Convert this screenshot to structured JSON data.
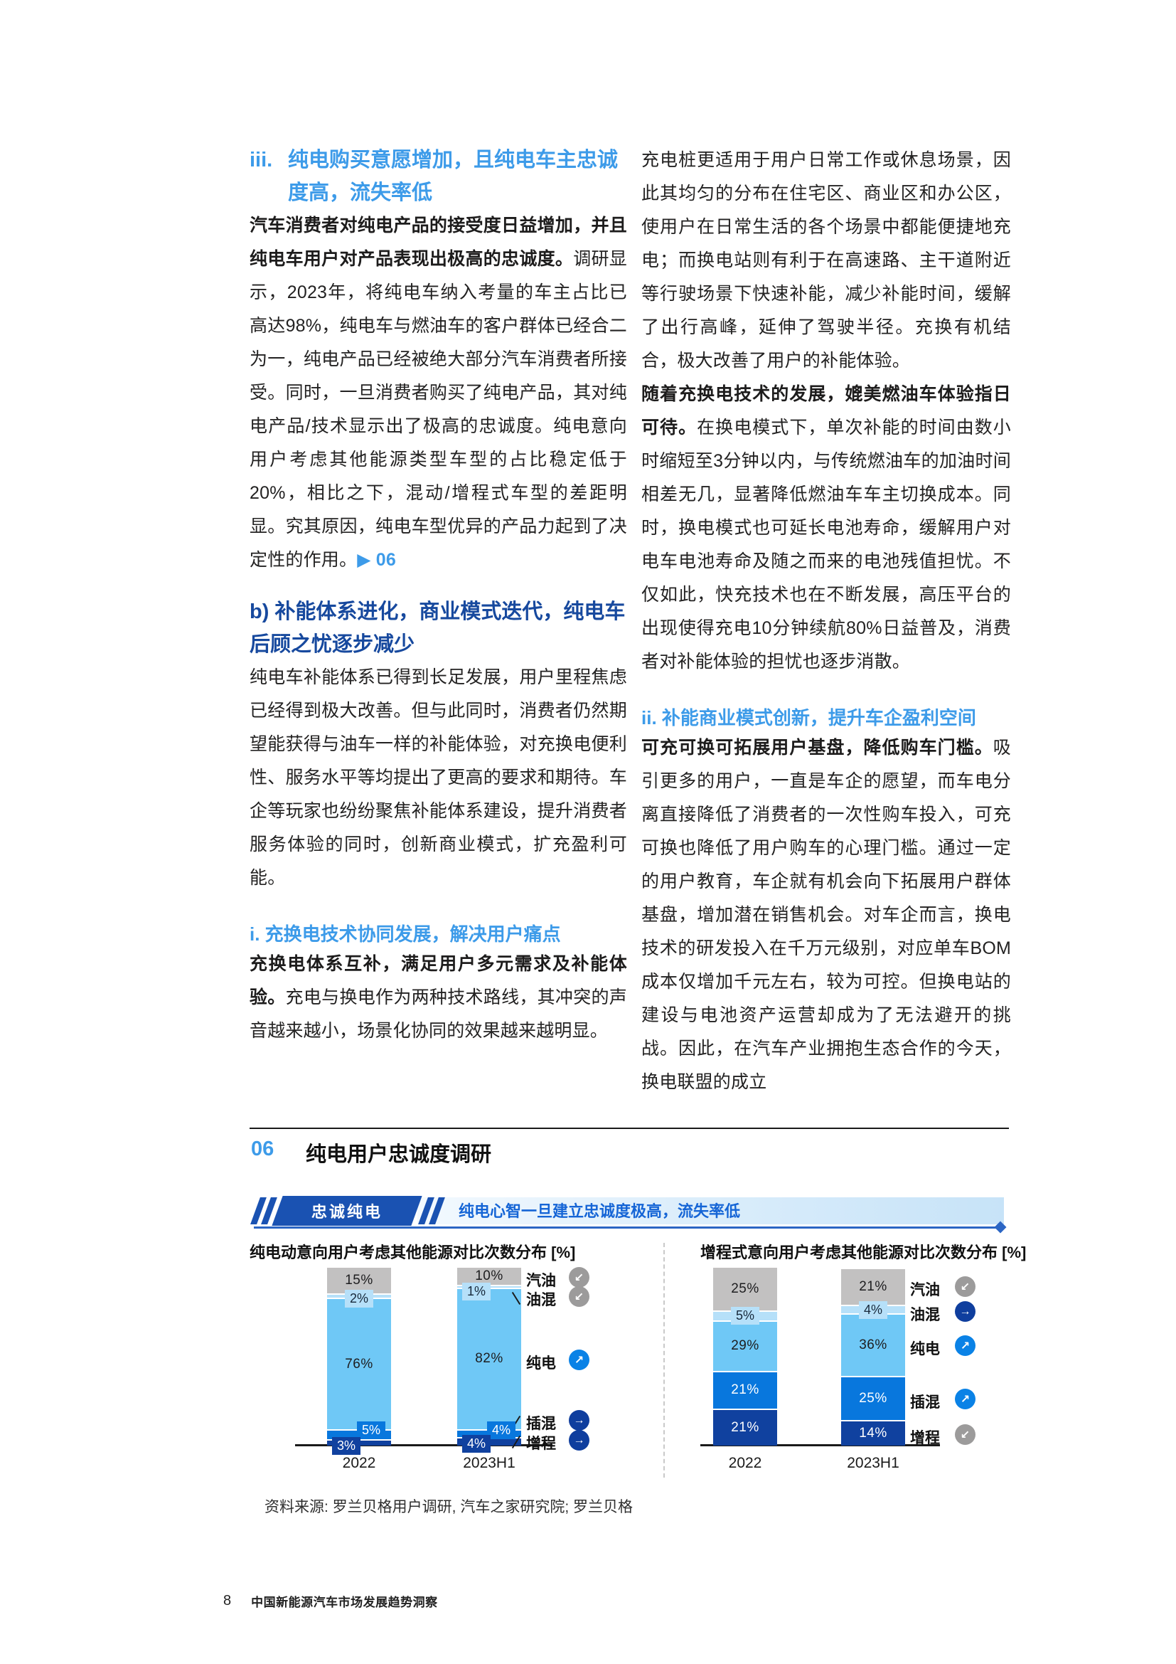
{
  "colors": {
    "gray": "#C2C1C1",
    "pale": "#B6E0F9",
    "sky": "#6FC8F6",
    "azure": "#0877DD",
    "navy": "#10419F",
    "icon_gray": "#9C9B9B",
    "icon_azure": "#0A82E6",
    "icon_navy": "#0F3E9E",
    "accent_light_blue": "#3D9BE9",
    "accent_navy": "#17499E",
    "banner_blue": "#1A52B2",
    "banner_text_blue": "#1565D6"
  },
  "left_column": {
    "h_iii_marker": "iii.",
    "h_iii_text": "纯电购买意愿增加，且纯电车主忠诚度高，流失率低",
    "p1_lead": "汽车消费者对纯电产品的接受度日益增加，并且纯电车用户对产品表现出极高的忠诚度。",
    "p1_rest": "调研显示，2023年，将纯电车纳入考量的车主占比已高达98%，纯电车与燃油车的客户群体已经合二为一，纯电产品已经被绝大部分汽车消费者所接受。同时，一旦消费者购买了纯电产品，其对纯电产品/技术显示出了极高的忠诚度。纯电意向用户考虑其他能源类型车型的占比稳定低于20%，相比之下，混动/增程式车型的差距明显。究其原因，纯电车型优异的产品力起到了决定性的作用。",
    "p1_ref": "▶ 06",
    "h_b": "b) 补能体系进化，商业模式迭代，纯电车后顾之忧逐步减少",
    "p2": "纯电车补能体系已得到长足发展，用户里程焦虑已经得到极大改善。但与此同时，消费者仍然期望能获得与油车一样的补能体验，对充换电便利性、服务水平等均提出了更高的要求和期待。车企等玩家也纷纷聚焦补能体系建设，提升消费者服务体验的同时，创新商业模式，扩充盈利可能。",
    "h_i": "i. 充换电技术协同发展，解决用户痛点",
    "p3_lead": "充换电体系互补，满足用户多元需求及补能体验。",
    "p3_rest": "充电与换电作为两种技术路线，其冲突的声音越来越小，场景化协同的效果越来越明显。"
  },
  "right_column": {
    "p1": "充电桩更适用于用户日常工作或休息场景，因此其均匀的分布在住宅区、商业区和办公区，使用户在日常生活的各个场景中都能便捷地充电；而换电站则有利于在高速路、主干道附近等行驶场景下快速补能，减少补能时间，缓解了出行高峰，延伸了驾驶半径。充换有机结合，极大改善了用户的补能体验。",
    "p2_lead": "随着充换电技术的发展，媲美燃油车体验指日可待。",
    "p2_rest": "在换电模式下，单次补能的时间由数小时缩短至3分钟以内，与传统燃油车的加油时间相差无几，显著降低燃油车车主切换成本。同时，换电模式也可延长电池寿命，缓解用户对电车电池寿命及随之而来的电池残值担忧。不仅如此，快充技术也在不断发展，高压平台的出现使得充电10分钟续航80%日益普及，消费者对补能体验的担忧也逐步消散。",
    "h_ii": "ii. 补能商业模式创新，提升车企盈利空间",
    "p3_lead": "可充可换可拓展用户基盘，降低购车门槛。",
    "p3_rest": "吸引更多的用户，一直是车企的愿望，而车电分离直接降低了消费者的一次性购车投入，可充可换也降低了用户购车的心理门槛。通过一定的用户教育，车企就有机会向下拓展用户群体基盘，增加潜在销售机会。对车企而言，换电技术的研发投入在千万元级别，对应单车BOM成本仅增加千元左右，较为可控。但换电站的建设与电池资产运营却成为了无法避开的挑战。因此，在汽车产业拥抱生态合作的今天，换电联盟的成立"
  },
  "figure": {
    "number": "06",
    "title": "纯电用户忠诚度调研",
    "banner_tag": "忠诚纯电",
    "banner_text": "纯电心智一旦建立忠诚度极高，流失率低",
    "source": "资料来源: 罗兰贝格用户调研, 汽车之家研究院; 罗兰贝格"
  },
  "footer": {
    "page_number": "8",
    "text": "中国新能源汽车市场发展趋势洞察"
  },
  "chart_data": [
    {
      "type": "bar",
      "subtype": "stacked-column",
      "title": "纯电动意向用户考虑其他能源对比次数分布 [%]",
      "categories": [
        "2022",
        "2023H1"
      ],
      "unit": "%",
      "ylim": [
        0,
        101
      ],
      "series": [
        {
          "name": "汽油",
          "color_key": "gray",
          "values": [
            15,
            10
          ],
          "label_modes": [
            "in",
            "in"
          ]
        },
        {
          "name": "油混",
          "color_key": "pale",
          "values": [
            2,
            1
          ],
          "label_modes": [
            "chip-c",
            "chip-l"
          ]
        },
        {
          "name": "纯电",
          "color_key": "sky",
          "values": [
            76,
            82
          ],
          "label_modes": [
            "in",
            "in"
          ]
        },
        {
          "name": "插混",
          "color_key": "azure",
          "values": [
            5,
            4
          ],
          "label_modes": [
            "chip-r",
            "chip-r"
          ]
        },
        {
          "name": "增程",
          "color_key": "navy",
          "values": [
            3,
            4
          ],
          "label_modes": [
            "chip-l",
            "chip-l"
          ]
        }
      ],
      "legend": [
        {
          "label": "汽油",
          "trend": "down",
          "icon_color_key": "icon_gray",
          "leader": null
        },
        {
          "label": "油混",
          "trend": "down",
          "icon_color_key": "icon_gray",
          "leader": "back"
        },
        {
          "label": "纯电",
          "trend": "up",
          "icon_color_key": "icon_azure",
          "leader": null
        },
        {
          "label": "插混",
          "trend": "flat",
          "icon_color_key": "icon_navy",
          "leader": "fwd"
        },
        {
          "label": "增程",
          "trend": "flat",
          "icon_color_key": "icon_navy",
          "leader": "fwd"
        }
      ],
      "legend_position": "right"
    },
    {
      "type": "bar",
      "subtype": "stacked-column",
      "title": "增程式意向用户考虑其他能源对比次数分布 [%]",
      "categories": [
        "2022",
        "2023H1"
      ],
      "unit": "%",
      "ylim": [
        0,
        101
      ],
      "series": [
        {
          "name": "汽油",
          "color_key": "gray",
          "values": [
            25,
            21
          ],
          "label_modes": [
            "in",
            "in"
          ]
        },
        {
          "name": "油混",
          "color_key": "pale",
          "values": [
            5,
            4
          ],
          "label_modes": [
            "chip-c",
            "chip-c"
          ]
        },
        {
          "name": "纯电",
          "color_key": "sky",
          "values": [
            29,
            36
          ],
          "label_modes": [
            "in",
            "in"
          ]
        },
        {
          "name": "插混",
          "color_key": "azure",
          "values": [
            21,
            25
          ],
          "label_modes": [
            "in",
            "in"
          ]
        },
        {
          "name": "增程",
          "color_key": "navy",
          "values": [
            21,
            14
          ],
          "label_modes": [
            "in",
            "in"
          ]
        }
      ],
      "legend": [
        {
          "label": "汽油",
          "trend": "down",
          "icon_color_key": "icon_gray",
          "leader": null
        },
        {
          "label": "油混",
          "trend": "flat",
          "icon_color_key": "icon_navy",
          "leader": null
        },
        {
          "label": "纯电",
          "trend": "up",
          "icon_color_key": "icon_azure",
          "leader": null
        },
        {
          "label": "插混",
          "trend": "up",
          "icon_color_key": "icon_azure",
          "leader": null
        },
        {
          "label": "增程",
          "trend": "down",
          "icon_color_key": "icon_gray",
          "leader": null
        }
      ],
      "legend_position": "right"
    }
  ]
}
